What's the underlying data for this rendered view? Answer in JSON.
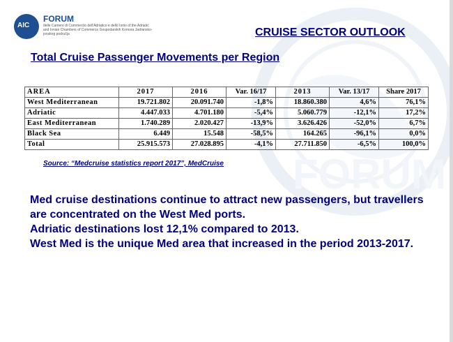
{
  "logo": {
    "icon_text": "AIC",
    "title": "FORUM",
    "subtitle": "delle Camere di Commercio dell'Adriatico e dello Ionio of the Adriatic and Ionian Chambers of Commerce Gospodarskih Komora Jadransko-jonskog područja"
  },
  "header": {
    "title": "CRUISE SECTOR OUTLOOK"
  },
  "table_title": "Total Cruise Passenger Movements per Region",
  "table": {
    "headers": [
      "AREA",
      "2017",
      "2016",
      "Var. 16/17",
      "2013",
      "Var. 13/17",
      "Share 2017"
    ],
    "rows": [
      [
        "West Mediterranean",
        "19.721.802",
        "20.091.740",
        "-1,8%",
        "18.860.380",
        "4,6%",
        "76,1%"
      ],
      [
        "Adriatic",
        "4.447.033",
        "4.701.180",
        "-5,4%",
        "5.060.779",
        "-12,1%",
        "17,2%"
      ],
      [
        "East Mediterranean",
        "1.740.289",
        "2.020.427",
        "-13,9%",
        "3.626.426",
        "-52,0%",
        "6,7%"
      ],
      [
        "Black Sea",
        "6.449",
        "15.548",
        "-58,5%",
        "164.265",
        "-96,1%",
        "0,0%"
      ],
      [
        "Total",
        "25.915.573",
        "27.028.895",
        "-4,1%",
        "27.711.850",
        "-6,5%",
        "100,0%"
      ]
    ]
  },
  "source": "Source: “Medcruise statistics report 2017”, MedCruise",
  "body_lines": [
    "Med cruise destinations continue to attract new passengers, but travellers are concentrated on the West Med ports.",
    "Adriatic destinations lost 12,1% compared to 2013.",
    "West Med is the unique Med area that increased in the period 2013-2017."
  ],
  "colors": {
    "text_navy": "#000080",
    "logo_blue": "#1d4f91"
  }
}
